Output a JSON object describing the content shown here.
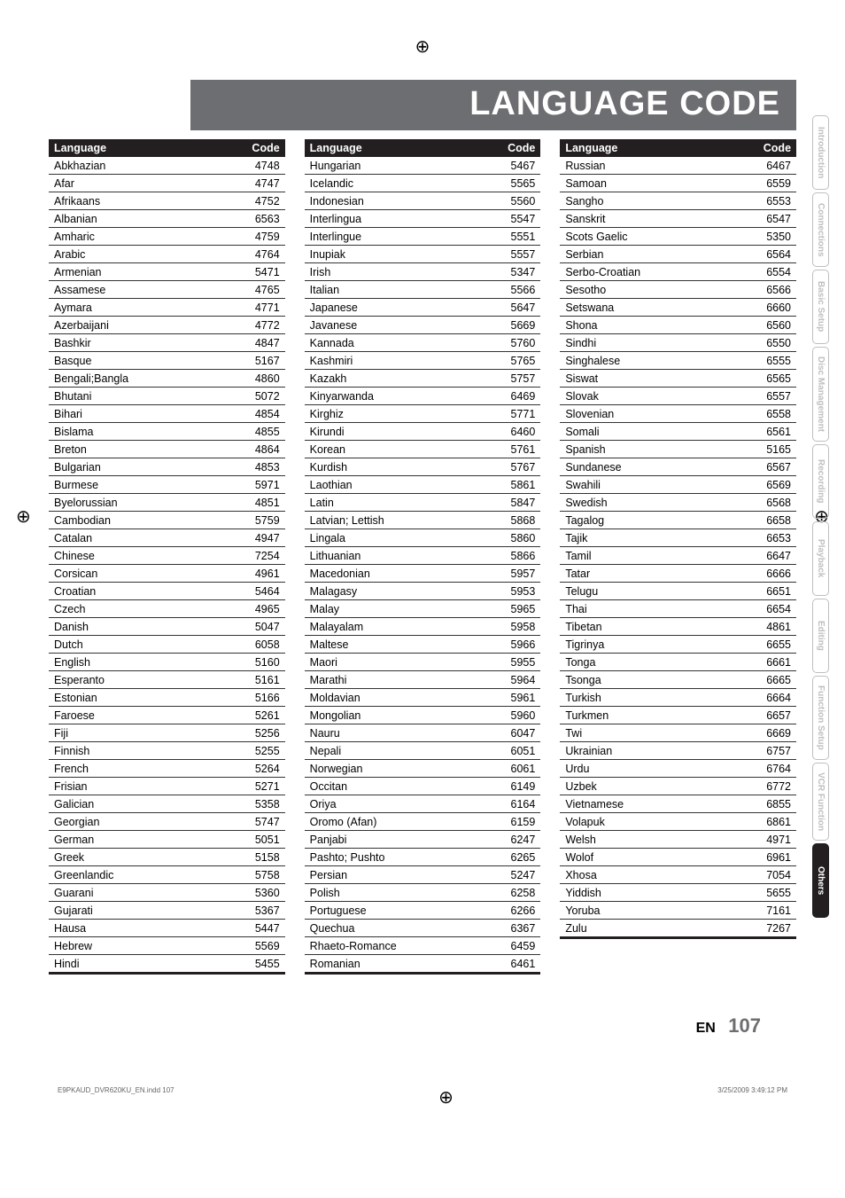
{
  "title": "LANGUAGE CODE",
  "headers": {
    "lang": "Language",
    "code": "Code"
  },
  "sidebar": [
    {
      "label": "Introduction",
      "active": false
    },
    {
      "label": "Connections",
      "active": false
    },
    {
      "label": "Basic Setup",
      "active": false
    },
    {
      "label": "Disc\nManagement",
      "active": false,
      "two": true
    },
    {
      "label": "Recording",
      "active": false
    },
    {
      "label": "Playback",
      "active": false
    },
    {
      "label": "Editing",
      "active": false
    },
    {
      "label": "Function Setup",
      "active": false
    },
    {
      "label": "VCR Function",
      "active": false
    },
    {
      "label": "Others",
      "active": true
    }
  ],
  "footer": {
    "en": "EN",
    "page": "107"
  },
  "print": {
    "file": "E9PKAUD_DVR620KU_EN.indd   107",
    "date": "3/25/2009   3:49:12 PM"
  },
  "col1": [
    [
      "Abkhazian",
      "4748"
    ],
    [
      "Afar",
      "4747"
    ],
    [
      "Afrikaans",
      "4752"
    ],
    [
      "Albanian",
      "6563"
    ],
    [
      "Amharic",
      "4759"
    ],
    [
      "Arabic",
      "4764"
    ],
    [
      "Armenian",
      "5471"
    ],
    [
      "Assamese",
      "4765"
    ],
    [
      "Aymara",
      "4771"
    ],
    [
      "Azerbaijani",
      "4772"
    ],
    [
      "Bashkir",
      "4847"
    ],
    [
      "Basque",
      "5167"
    ],
    [
      "Bengali;Bangla",
      "4860"
    ],
    [
      "Bhutani",
      "5072"
    ],
    [
      "Bihari",
      "4854"
    ],
    [
      "Bislama",
      "4855"
    ],
    [
      "Breton",
      "4864"
    ],
    [
      "Bulgarian",
      "4853"
    ],
    [
      "Burmese",
      "5971"
    ],
    [
      "Byelorussian",
      "4851"
    ],
    [
      "Cambodian",
      "5759"
    ],
    [
      "Catalan",
      "4947"
    ],
    [
      "Chinese",
      "7254"
    ],
    [
      "Corsican",
      "4961"
    ],
    [
      "Croatian",
      "5464"
    ],
    [
      "Czech",
      "4965"
    ],
    [
      "Danish",
      "5047"
    ],
    [
      "Dutch",
      "6058"
    ],
    [
      "English",
      "5160"
    ],
    [
      "Esperanto",
      "5161"
    ],
    [
      "Estonian",
      "5166"
    ],
    [
      "Faroese",
      "5261"
    ],
    [
      "Fiji",
      "5256"
    ],
    [
      "Finnish",
      "5255"
    ],
    [
      "French",
      "5264"
    ],
    [
      "Frisian",
      "5271"
    ],
    [
      "Galician",
      "5358"
    ],
    [
      "Georgian",
      "5747"
    ],
    [
      "German",
      "5051"
    ],
    [
      "Greek",
      "5158"
    ],
    [
      "Greenlandic",
      "5758"
    ],
    [
      "Guarani",
      "5360"
    ],
    [
      "Gujarati",
      "5367"
    ],
    [
      "Hausa",
      "5447"
    ],
    [
      "Hebrew",
      "5569"
    ],
    [
      "Hindi",
      "5455"
    ]
  ],
  "col2": [
    [
      "Hungarian",
      "5467"
    ],
    [
      "Icelandic",
      "5565"
    ],
    [
      "Indonesian",
      "5560"
    ],
    [
      "Interlingua",
      "5547"
    ],
    [
      "Interlingue",
      "5551"
    ],
    [
      "Inupiak",
      "5557"
    ],
    [
      "Irish",
      "5347"
    ],
    [
      "Italian",
      "5566"
    ],
    [
      "Japanese",
      "5647"
    ],
    [
      "Javanese",
      "5669"
    ],
    [
      "Kannada",
      "5760"
    ],
    [
      "Kashmiri",
      "5765"
    ],
    [
      "Kazakh",
      "5757"
    ],
    [
      "Kinyarwanda",
      "6469"
    ],
    [
      "Kirghiz",
      "5771"
    ],
    [
      "Kirundi",
      "6460"
    ],
    [
      "Korean",
      "5761"
    ],
    [
      "Kurdish",
      "5767"
    ],
    [
      "Laothian",
      "5861"
    ],
    [
      "Latin",
      "5847"
    ],
    [
      "Latvian; Lettish",
      "5868"
    ],
    [
      "Lingala",
      "5860"
    ],
    [
      "Lithuanian",
      "5866"
    ],
    [
      "Macedonian",
      "5957"
    ],
    [
      "Malagasy",
      "5953"
    ],
    [
      "Malay",
      "5965"
    ],
    [
      "Malayalam",
      "5958"
    ],
    [
      "Maltese",
      "5966"
    ],
    [
      "Maori",
      "5955"
    ],
    [
      "Marathi",
      "5964"
    ],
    [
      "Moldavian",
      "5961"
    ],
    [
      "Mongolian",
      "5960"
    ],
    [
      "Nauru",
      "6047"
    ],
    [
      "Nepali",
      "6051"
    ],
    [
      "Norwegian",
      "6061"
    ],
    [
      "Occitan",
      "6149"
    ],
    [
      "Oriya",
      "6164"
    ],
    [
      "Oromo (Afan)",
      "6159"
    ],
    [
      "Panjabi",
      "6247"
    ],
    [
      "Pashto; Pushto",
      "6265"
    ],
    [
      "Persian",
      "5247"
    ],
    [
      "Polish",
      "6258"
    ],
    [
      "Portuguese",
      "6266"
    ],
    [
      "Quechua",
      "6367"
    ],
    [
      "Rhaeto-Romance",
      "6459"
    ],
    [
      "Romanian",
      "6461"
    ]
  ],
  "col3": [
    [
      "Russian",
      "6467"
    ],
    [
      "Samoan",
      "6559"
    ],
    [
      "Sangho",
      "6553"
    ],
    [
      "Sanskrit",
      "6547"
    ],
    [
      "Scots Gaelic",
      "5350"
    ],
    [
      "Serbian",
      "6564"
    ],
    [
      "Serbo-Croatian",
      "6554"
    ],
    [
      "Sesotho",
      "6566"
    ],
    [
      "Setswana",
      "6660"
    ],
    [
      "Shona",
      "6560"
    ],
    [
      "Sindhi",
      "6550"
    ],
    [
      "Singhalese",
      "6555"
    ],
    [
      "Siswat",
      "6565"
    ],
    [
      "Slovak",
      "6557"
    ],
    [
      "Slovenian",
      "6558"
    ],
    [
      "Somali",
      "6561"
    ],
    [
      "Spanish",
      "5165"
    ],
    [
      "Sundanese",
      "6567"
    ],
    [
      "Swahili",
      "6569"
    ],
    [
      "Swedish",
      "6568"
    ],
    [
      "Tagalog",
      "6658"
    ],
    [
      "Tajik",
      "6653"
    ],
    [
      "Tamil",
      "6647"
    ],
    [
      "Tatar",
      "6666"
    ],
    [
      "Telugu",
      "6651"
    ],
    [
      "Thai",
      "6654"
    ],
    [
      "Tibetan",
      "4861"
    ],
    [
      "Tigrinya",
      "6655"
    ],
    [
      "Tonga",
      "6661"
    ],
    [
      "Tsonga",
      "6665"
    ],
    [
      "Turkish",
      "6664"
    ],
    [
      "Turkmen",
      "6657"
    ],
    [
      "Twi",
      "6669"
    ],
    [
      "Ukrainian",
      "6757"
    ],
    [
      "Urdu",
      "6764"
    ],
    [
      "Uzbek",
      "6772"
    ],
    [
      "Vietnamese",
      "6855"
    ],
    [
      "Volapuk",
      "6861"
    ],
    [
      "Welsh",
      "4971"
    ],
    [
      "Wolof",
      "6961"
    ],
    [
      "Xhosa",
      "7054"
    ],
    [
      "Yiddish",
      "5655"
    ],
    [
      "Yoruba",
      "7161"
    ],
    [
      "Zulu",
      "7267"
    ]
  ]
}
